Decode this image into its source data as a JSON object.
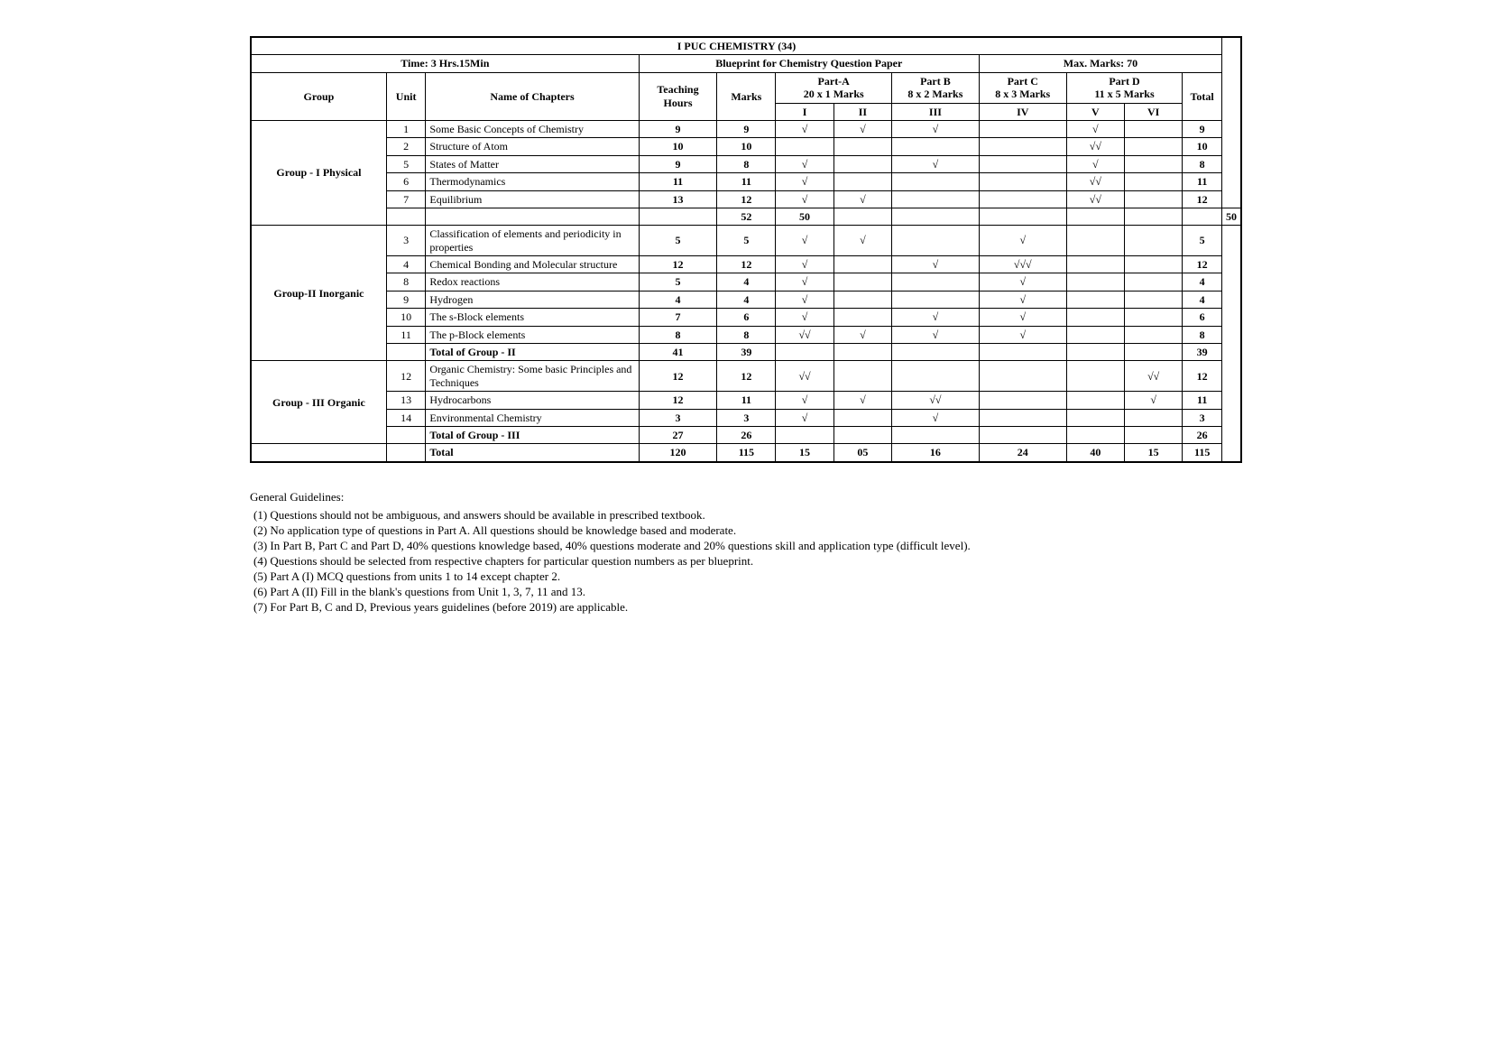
{
  "title": "I PUC CHEMISTRY (34)",
  "meta": {
    "time_label": "Time: 3 Hrs.15Min",
    "blueprint_label": "Blueprint for Chemistry Question Paper",
    "max_marks_label": "Max. Marks: 70"
  },
  "columns": {
    "group": "Group",
    "unit": "Unit",
    "name": "Name of Chapters",
    "teaching": "Teaching Hours",
    "marks": "Marks",
    "partA": "Part-A",
    "partA_sub": "20 x 1 Marks",
    "partB": "Part B",
    "partB_sub": "8 x 2 Marks",
    "partC": "Part C",
    "partC_sub": "8 x 3 Marks",
    "partD": "Part D",
    "partD_sub": "11 x 5 Marks",
    "total": "Total",
    "roman": [
      "I",
      "II",
      "III",
      "IV",
      "V",
      "VI"
    ]
  },
  "groups": [
    {
      "name": "Group - I Physical",
      "rows": [
        {
          "unit": "1",
          "chapter": "Some Basic Concepts of Chemistry",
          "th": "9",
          "marks": "9",
          "p": [
            "√",
            "√",
            "√",
            "",
            "√",
            ""
          ],
          "total": "9"
        },
        {
          "unit": "2",
          "chapter": "Structure of Atom",
          "th": "10",
          "marks": "10",
          "p": [
            "",
            "",
            "",
            "",
            "√√",
            ""
          ],
          "total": "10"
        },
        {
          "unit": "5",
          "chapter": "States of Matter",
          "th": "9",
          "marks": "8",
          "p": [
            "√",
            "",
            "√",
            "",
            "√",
            ""
          ],
          "total": "8"
        },
        {
          "unit": "6",
          "chapter": "Thermodynamics",
          "th": "11",
          "marks": "11",
          "p": [
            "√",
            "",
            "",
            "",
            "√√",
            ""
          ],
          "total": "11"
        },
        {
          "unit": "7",
          "chapter": "Equilibrium",
          "th": "13",
          "marks": "12",
          "p": [
            "√",
            "√",
            "",
            "",
            "√√",
            ""
          ],
          "total": "12"
        }
      ],
      "subtotal": {
        "th": "52",
        "marks": "50",
        "total": "50"
      }
    },
    {
      "name": "Group-II Inorganic",
      "rows": [
        {
          "unit": "3",
          "chapter": "Classification of elements and periodicity in properties",
          "th": "5",
          "marks": "5",
          "p": [
            "√",
            "√",
            "",
            "√",
            "",
            ""
          ],
          "total": "5"
        },
        {
          "unit": "4",
          "chapter": "Chemical Bonding and Molecular structure",
          "th": "12",
          "marks": "12",
          "p": [
            "√",
            "",
            "√",
            "√√√",
            "",
            ""
          ],
          "total": "12"
        },
        {
          "unit": "8",
          "chapter": "Redox reactions",
          "th": "5",
          "marks": "4",
          "p": [
            "√",
            "",
            "",
            "√",
            "",
            ""
          ],
          "total": "4"
        },
        {
          "unit": "9",
          "chapter": "Hydrogen",
          "th": "4",
          "marks": "4",
          "p": [
            "√",
            "",
            "",
            "√",
            "",
            ""
          ],
          "total": "4"
        },
        {
          "unit": "10",
          "chapter": "The s-Block elements",
          "th": "7",
          "marks": "6",
          "p": [
            "√",
            "",
            "√",
            "√",
            "",
            ""
          ],
          "total": "6"
        },
        {
          "unit": "11",
          "chapter": "The p-Block elements",
          "th": "8",
          "marks": "8",
          "p": [
            "√√",
            "√",
            "√",
            "√",
            "",
            ""
          ],
          "total": "8"
        }
      ],
      "subtotal_label": "Total of Group - II",
      "subtotal": {
        "th": "41",
        "marks": "39",
        "total": "39"
      }
    },
    {
      "name": "Group - III Organic",
      "rows": [
        {
          "unit": "12",
          "chapter": "Organic Chemistry: Some basic Principles and Techniques",
          "th": "12",
          "marks": "12",
          "p": [
            "√√",
            "",
            "",
            "",
            "",
            "√√"
          ],
          "total": "12"
        },
        {
          "unit": "13",
          "chapter": "Hydrocarbons",
          "th": "12",
          "marks": "11",
          "p": [
            "√",
            "√",
            "√√",
            "",
            "",
            "√"
          ],
          "total": "11"
        },
        {
          "unit": "14",
          "chapter": "Environmental Chemistry",
          "th": "3",
          "marks": "3",
          "p": [
            "√",
            "",
            "√",
            "",
            "",
            ""
          ],
          "total": "3"
        }
      ],
      "subtotal_label": "Total of Group - III",
      "subtotal": {
        "th": "27",
        "marks": "26",
        "total": "26"
      }
    }
  ],
  "grand": {
    "label": "Total",
    "th": "120",
    "marks": "115",
    "p": [
      "15",
      "05",
      "16",
      "24",
      "40",
      "15"
    ],
    "total": "115"
  },
  "guidelines": {
    "title": "General Guidelines:",
    "items": [
      "Questions should not be ambiguous, and answers should be available in prescribed textbook.",
      "No application type of questions in Part A. All questions should be knowledge based and moderate.",
      "In Part B, Part C and Part D, 40% questions knowledge based, 40% questions moderate and 20% questions skill and application type (difficult level).",
      "Questions should be selected from respective chapters for particular question numbers as per blueprint.",
      "Part A (I) MCQ questions from units 1 to 14 except chapter 2.",
      "Part A (II) Fill in the blank's questions from Unit 1, 3, 7, 11 and 13.",
      "For Part B, C and D, Previous years guidelines (before 2019) are applicable."
    ]
  },
  "style": {
    "border_color": "#000000",
    "background": "#ffffff",
    "title_fontsize": 15,
    "body_fontsize": 12,
    "col_widths_pct": [
      14,
      4,
      22,
      8,
      6,
      6,
      6,
      9,
      9,
      6,
      6,
      6
    ]
  }
}
